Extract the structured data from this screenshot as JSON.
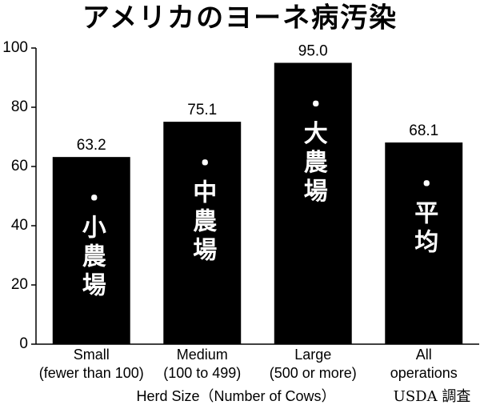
{
  "chart_data": {
    "type": "bar",
    "title": "アメリカのヨーネ病汚染",
    "categories": [
      [
        "Small",
        "(fewer than 100)"
      ],
      [
        "Medium",
        "(100 to 499)"
      ],
      [
        "Large",
        "(500 or more)"
      ],
      [
        "All",
        "operations"
      ]
    ],
    "values": [
      63.2,
      75.1,
      95.0,
      68.1
    ],
    "value_labels": [
      "63.2",
      "75.1",
      "95.0",
      "68.1"
    ],
    "bar_annotations": [
      "・小農場",
      "・中農場",
      "・大農場",
      "・平均"
    ],
    "color": "#000000",
    "ylim": [
      0,
      100
    ],
    "yticks": [
      0,
      20,
      40,
      60,
      80,
      100
    ],
    "xlabel": "Herd Size（Number of Cows）",
    "source": "USDA 調査"
  }
}
